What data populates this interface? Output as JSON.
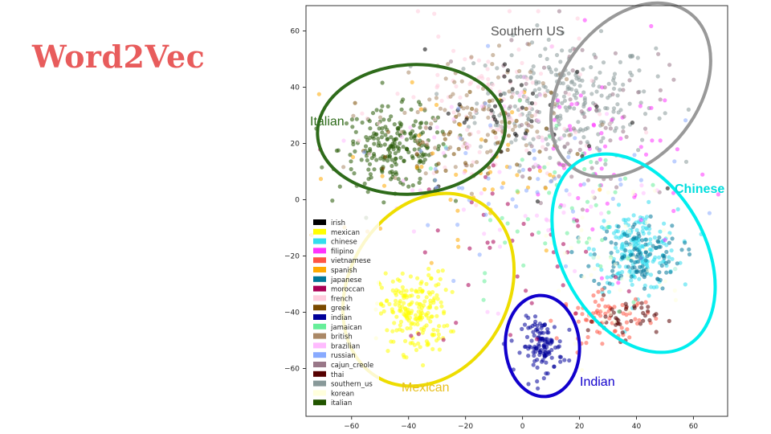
{
  "slide": {
    "title": "Word2Vec"
  },
  "chart_data": {
    "type": "scatter",
    "title": "",
    "xlabel": "",
    "ylabel": "",
    "xlim": [
      -76,
      72
    ],
    "ylim": [
      -77,
      69
    ],
    "xticks": [
      -60,
      -40,
      -20,
      0,
      20,
      40,
      60
    ],
    "yticks": [
      60,
      40,
      20,
      0,
      -20,
      -40,
      -60
    ],
    "grid": false,
    "legend_position": "lower-left",
    "series": [
      {
        "name": "irish",
        "color": "#000000"
      },
      {
        "name": "mexican",
        "color": "#ffff00"
      },
      {
        "name": "chinese",
        "color": "#33ddee"
      },
      {
        "name": "filipino",
        "color": "#ff33ff"
      },
      {
        "name": "vietnamese",
        "color": "#ff5544"
      },
      {
        "name": "spanish",
        "color": "#ffaa00"
      },
      {
        "name": "japanese",
        "color": "#007799"
      },
      {
        "name": "moroccan",
        "color": "#aa0055"
      },
      {
        "name": "french",
        "color": "#ffccdd"
      },
      {
        "name": "greek",
        "color": "#7a4a00"
      },
      {
        "name": "indian",
        "color": "#000099"
      },
      {
        "name": "jamaican",
        "color": "#66ee99"
      },
      {
        "name": "british",
        "color": "#aa8866"
      },
      {
        "name": "brazilian",
        "color": "#ffbbff"
      },
      {
        "name": "russian",
        "color": "#88aaff"
      },
      {
        "name": "cajun_creole",
        "color": "#997788"
      },
      {
        "name": "thai",
        "color": "#550000"
      },
      {
        "name": "southern_us",
        "color": "#889999"
      },
      {
        "name": "korean",
        "color": "#ffffdd"
      },
      {
        "name": "italian",
        "color": "#225500"
      }
    ],
    "clusters": [
      {
        "label": "Southern US",
        "color": "#999999",
        "center": [
          38,
          39
        ],
        "radii": [
          34,
          24
        ],
        "rotation": -52
      },
      {
        "label": "Italian",
        "color": "#2e6b1a",
        "center": [
          -39,
          25
        ],
        "radii": [
          33,
          23
        ],
        "rotation": -4
      },
      {
        "label": "Chinese",
        "color": "#00eeee",
        "center": [
          39,
          -19
        ],
        "radii": [
          25,
          38
        ],
        "rotation": -30
      },
      {
        "label": "Mexican",
        "color": "#eedd00",
        "center": [
          -33,
          -32
        ],
        "radii": [
          28,
          36
        ],
        "rotation": 30
      },
      {
        "label": "Indian",
        "color": "#1100cc",
        "center": [
          7,
          -52
        ],
        "radii": [
          13,
          18
        ],
        "rotation": -4
      }
    ],
    "clouds": [
      {
        "series": "southern_us",
        "center": [
          15,
          35
        ],
        "spread": [
          26,
          18
        ],
        "count": 260
      },
      {
        "series": "italian",
        "center": [
          -45,
          18
        ],
        "spread": [
          16,
          12
        ],
        "count": 220
      },
      {
        "series": "chinese",
        "center": [
          40,
          -18
        ],
        "spread": [
          12,
          12
        ],
        "count": 180
      },
      {
        "series": "japanese",
        "center": [
          40,
          -20
        ],
        "spread": [
          13,
          10
        ],
        "count": 110
      },
      {
        "series": "mexican",
        "center": [
          -38,
          -40
        ],
        "spread": [
          10,
          12
        ],
        "count": 200
      },
      {
        "series": "indian",
        "center": [
          7,
          -52
        ],
        "spread": [
          6,
          8
        ],
        "count": 120
      },
      {
        "series": "vietnamese",
        "center": [
          30,
          -42
        ],
        "spread": [
          14,
          7
        ],
        "count": 70
      },
      {
        "series": "thai",
        "center": [
          35,
          -42
        ],
        "spread": [
          10,
          6
        ],
        "count": 40
      },
      {
        "series": "filipino",
        "center": [
          28,
          15
        ],
        "spread": [
          25,
          30
        ],
        "count": 60
      },
      {
        "series": "french",
        "center": [
          -10,
          30
        ],
        "spread": [
          30,
          25
        ],
        "count": 120
      },
      {
        "series": "cajun_creole",
        "center": [
          20,
          30
        ],
        "spread": [
          25,
          25
        ],
        "count": 70
      },
      {
        "series": "british",
        "center": [
          -20,
          30
        ],
        "spread": [
          28,
          20
        ],
        "count": 90
      },
      {
        "series": "greek",
        "center": [
          -20,
          20
        ],
        "spread": [
          25,
          15
        ],
        "count": 50
      },
      {
        "series": "spanish",
        "center": [
          -20,
          10
        ],
        "spread": [
          35,
          25
        ],
        "count": 50
      },
      {
        "series": "brazilian",
        "center": [
          0,
          10
        ],
        "spread": [
          40,
          35
        ],
        "count": 60
      },
      {
        "series": "jamaican",
        "center": [
          10,
          0
        ],
        "spread": [
          35,
          35
        ],
        "count": 50
      },
      {
        "series": "irish",
        "center": [
          0,
          30
        ],
        "spread": [
          30,
          20
        ],
        "count": 40
      },
      {
        "series": "moroccan",
        "center": [
          0,
          -20
        ],
        "spread": [
          35,
          30
        ],
        "count": 40
      },
      {
        "series": "russian",
        "center": [
          0,
          10
        ],
        "spread": [
          40,
          30
        ],
        "count": 50
      },
      {
        "series": "korean",
        "center": [
          30,
          -20
        ],
        "spread": [
          25,
          25
        ],
        "count": 50
      }
    ]
  }
}
